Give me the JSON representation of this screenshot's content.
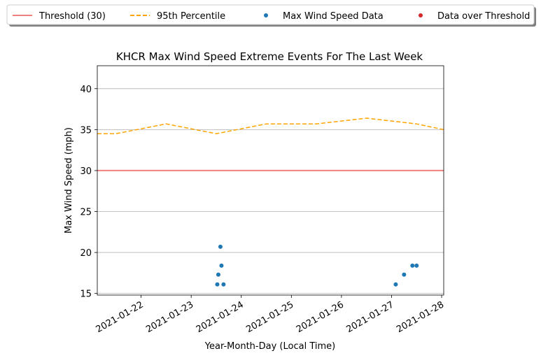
{
  "chart_data": {
    "type": "scatter",
    "title": "KHCR Max Wind Speed Extreme Events For The Last Week",
    "xlabel": "Year-Month-Day (Local Time)",
    "ylabel": "Max Wind Speed (mph)",
    "x_type": "date",
    "xlim": [
      "2021-01-21T03:00",
      "2021-01-28T01:00"
    ],
    "ylim": [
      14.8,
      42.8
    ],
    "x_ticks": [
      "2021-01-22",
      "2021-01-23",
      "2021-01-24",
      "2021-01-25",
      "2021-01-26",
      "2021-01-27",
      "2021-01-28"
    ],
    "y_ticks": [
      15,
      20,
      25,
      30,
      35,
      40
    ],
    "grid": "y",
    "legend_position": "top-center, outside plot",
    "legend": [
      {
        "label": "Threshold (30)",
        "kind": "line",
        "color": "#f08080",
        "dash": "solid"
      },
      {
        "label": "95th Percentile",
        "kind": "line",
        "color": "#ffa500",
        "dash": "dashed"
      },
      {
        "label": "Max Wind Speed Data",
        "kind": "marker",
        "color": "#1f77b4"
      },
      {
        "label": "Data over Threshold",
        "kind": "marker",
        "color": "#d62728"
      }
    ],
    "series": [
      {
        "name": "Threshold (30)",
        "kind": "line",
        "color": "#f08080",
        "points": [
          {
            "x": "2021-01-21T03:00",
            "y": 30
          },
          {
            "x": "2021-01-28T01:00",
            "y": 30
          }
        ]
      },
      {
        "name": "95th Percentile",
        "kind": "line",
        "color": "#ffa500",
        "points": [
          {
            "x": "2021-01-21T03:00",
            "y": 34.5
          },
          {
            "x": "2021-01-21T12:00",
            "y": 34.5
          },
          {
            "x": "2021-01-22T12:00",
            "y": 35.7
          },
          {
            "x": "2021-01-23T12:00",
            "y": 34.5
          },
          {
            "x": "2021-01-24T12:00",
            "y": 35.7
          },
          {
            "x": "2021-01-25T12:00",
            "y": 35.7
          },
          {
            "x": "2021-01-26T12:00",
            "y": 36.4
          },
          {
            "x": "2021-01-27T12:00",
            "y": 35.7
          },
          {
            "x": "2021-01-28T01:00",
            "y": 35.0
          }
        ]
      },
      {
        "name": "Max Wind Speed Data",
        "kind": "scatter",
        "color": "#1f77b4",
        "points": [
          {
            "x": "2021-01-23T12:30",
            "y": 16.1
          },
          {
            "x": "2021-01-23T13:00",
            "y": 17.3
          },
          {
            "x": "2021-01-23T14:00",
            "y": 20.7
          },
          {
            "x": "2021-01-23T14:30",
            "y": 18.4
          },
          {
            "x": "2021-01-23T15:30",
            "y": 16.1
          },
          {
            "x": "2021-01-27T02:00",
            "y": 16.1
          },
          {
            "x": "2021-01-27T06:00",
            "y": 17.3
          },
          {
            "x": "2021-01-27T10:00",
            "y": 18.4
          },
          {
            "x": "2021-01-27T12:00",
            "y": 18.4
          }
        ]
      },
      {
        "name": "Data over Threshold",
        "kind": "scatter",
        "color": "#d62728",
        "points": []
      }
    ]
  }
}
